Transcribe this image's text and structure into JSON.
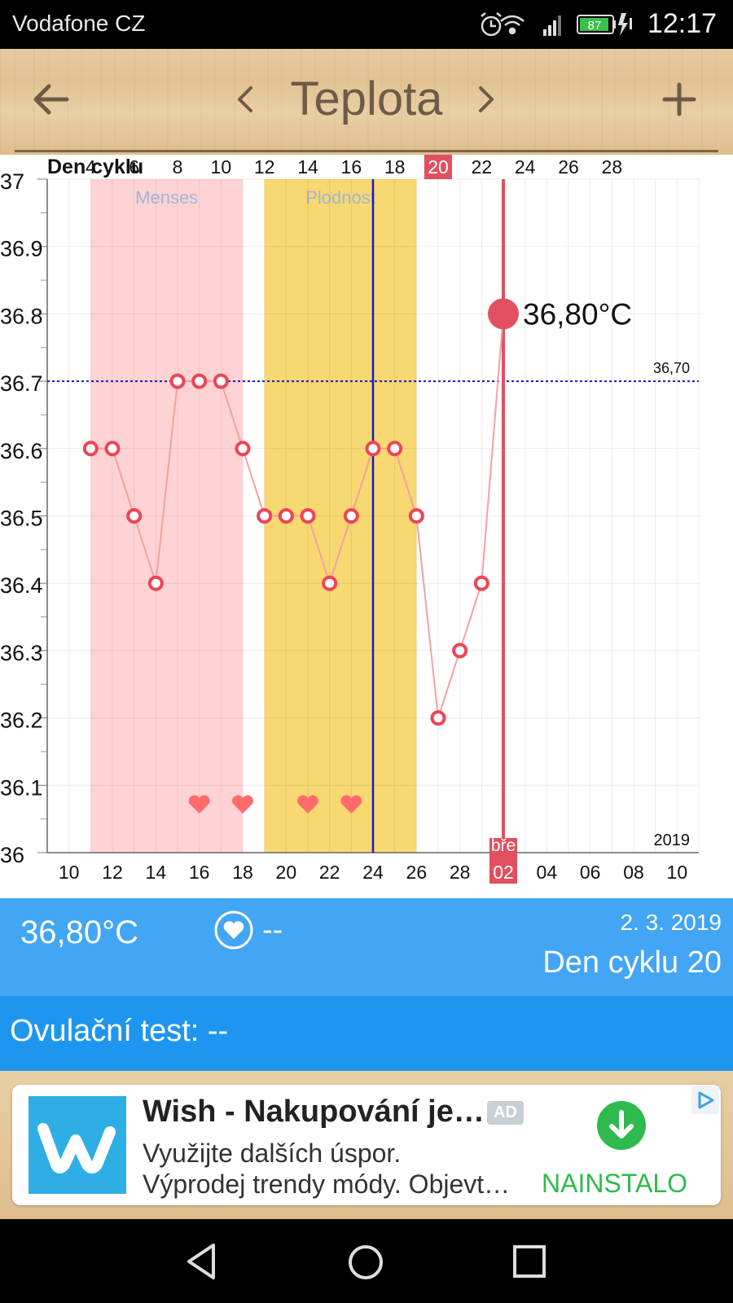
{
  "status_bar": {
    "carrier": "Vodafone CZ",
    "battery": "87",
    "time": "12:17",
    "icons": [
      "alarm-icon",
      "wifi-icon",
      "signal-icon",
      "battery-icon",
      "charging-icon"
    ]
  },
  "app_bar": {
    "title": "Teplota",
    "back_icon": "arrow-left-icon",
    "prev_icon": "chevron-left-icon",
    "next_icon": "chevron-right-icon",
    "add_icon": "plus-icon"
  },
  "chart": {
    "top_axis_label": "Den cyklu",
    "year_label": "2019",
    "selected_month_label": "bře",
    "selected_value_label": "36,80°C",
    "reference_value_label": "36,70",
    "colors": {
      "line": "#f5a0a0",
      "point": "#ee4455",
      "selected": "#e05060",
      "menses_band": "#ffd3d3",
      "fertile_band": "#f7d871",
      "ovulation_line": "#1a1ac0",
      "reference_line": "#1a1ac0",
      "band_label": "#9fb5d6"
    }
  },
  "chart_data": {
    "type": "line",
    "title": "",
    "ylabel": "",
    "xlabel": "",
    "ylim": [
      36,
      37
    ],
    "y_ticks": [
      "36",
      "36.1",
      "36.2",
      "36.3",
      "36.4",
      "36.5",
      "36.6",
      "36.7",
      "36.8",
      "36.9",
      "37"
    ],
    "x_day_range": [
      9,
      39
    ],
    "bottom_tick_labels": [
      "10",
      "12",
      "14",
      "16",
      "18",
      "20",
      "22",
      "24",
      "26",
      "28",
      "02",
      "04",
      "06",
      "08",
      "10"
    ],
    "top_tick_labels": [
      "4",
      "6",
      "8",
      "10",
      "12",
      "14",
      "16",
      "18",
      "20",
      "22",
      "24",
      "26",
      "28"
    ],
    "series": [
      {
        "days": [
          11,
          12,
          13,
          14,
          15,
          16,
          17,
          18,
          19,
          20,
          21,
          22,
          23,
          24,
          25,
          26,
          27,
          28,
          29,
          30
        ],
        "values": [
          36.6,
          36.6,
          36.5,
          36.4,
          36.7,
          36.7,
          36.7,
          36.6,
          36.5,
          36.5,
          36.5,
          36.4,
          36.5,
          36.6,
          36.6,
          36.5,
          36.2,
          36.3,
          36.4,
          36.8
        ]
      }
    ],
    "bands": [
      {
        "label": "Menses",
        "start_day": 11,
        "end_day": 18
      },
      {
        "label": "Plodnost",
        "start_day": 19,
        "end_day": 26
      }
    ],
    "ovulation_day": 24,
    "reference_line_value": 36.7,
    "selected": {
      "day": 30,
      "value": 36.8,
      "top_label": "20",
      "bottom_label": "02"
    },
    "hearts_days": [
      16,
      18,
      21,
      23
    ],
    "grid": true
  },
  "info": {
    "temperature": "36,80°C",
    "heart_value": "--",
    "date": "2. 3. 2019",
    "cycle_day": "Den cyklu 20"
  },
  "ovulation": {
    "text": "Ovulační test: --"
  },
  "ad": {
    "title": "Wish - Nakupování je…",
    "badge": "AD",
    "line1": "Využijte dalších úspor.",
    "line2": "Výprodej trendy módy. Objevt…",
    "install": "NAINSTALO"
  },
  "nav": {
    "back": "triangle-back-icon",
    "home": "circle-home-icon",
    "recents": "square-recents-icon"
  }
}
